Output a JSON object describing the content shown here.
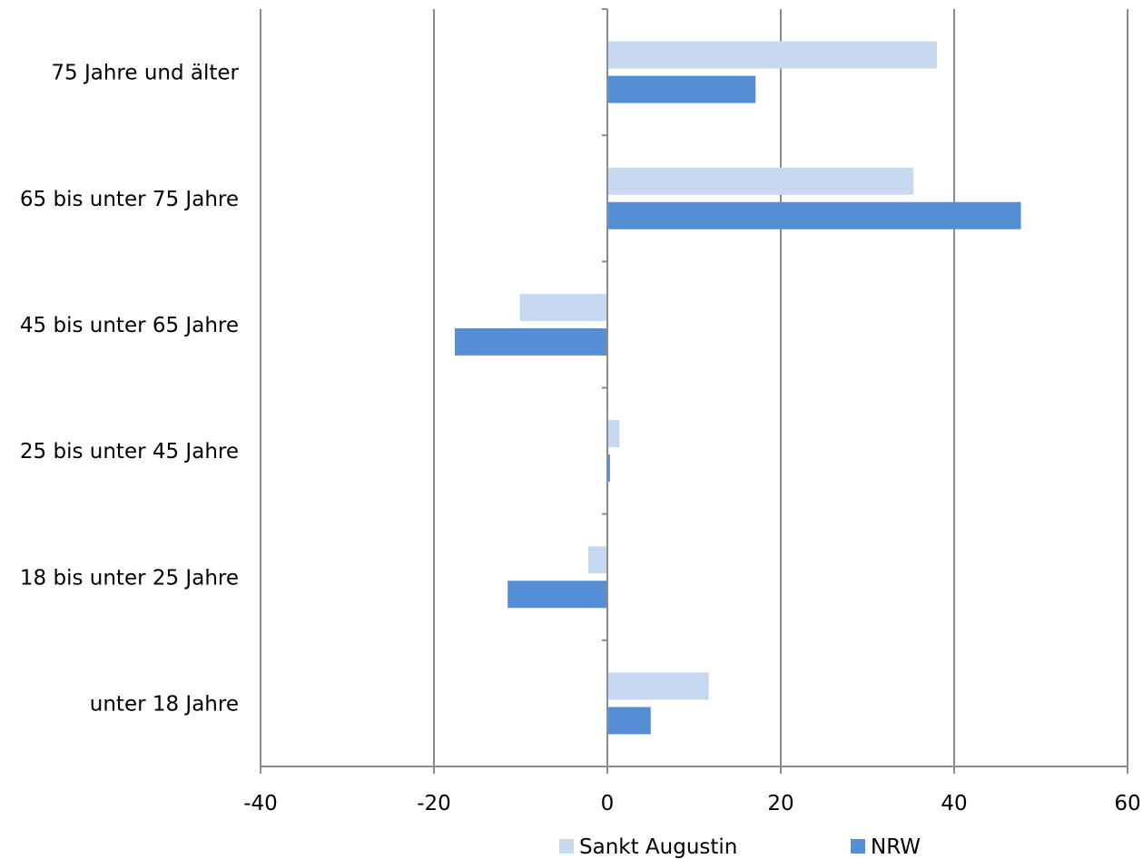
{
  "chart_data": {
    "type": "bar",
    "orientation": "horizontal",
    "title": "",
    "xlabel": "",
    "ylabel": "",
    "categories": [
      "75 Jahre und älter",
      "65 bis unter 75 Jahre",
      "45 bis unter 65 Jahre",
      "25 bis unter 45 Jahre",
      "18 bis unter 25 Jahre",
      "unter 18 Jahre"
    ],
    "series": [
      {
        "name": "Sankt Augustin",
        "color": "#c6d9f1",
        "values": [
          38.0,
          35.3,
          -10.1,
          1.4,
          -2.2,
          11.7
        ]
      },
      {
        "name": "NRW",
        "color": "#558ed5",
        "values": [
          17.1,
          47.7,
          -17.6,
          0.3,
          -11.5,
          5.0
        ]
      }
    ],
    "xlim": [
      -40,
      60
    ],
    "xticks": [
      -40,
      -20,
      0,
      20,
      40,
      60
    ],
    "xtick_labels": [
      "-40",
      "-20",
      "0",
      "20",
      "40",
      "60"
    ],
    "grid": "vertical",
    "legend_position": "bottom"
  }
}
